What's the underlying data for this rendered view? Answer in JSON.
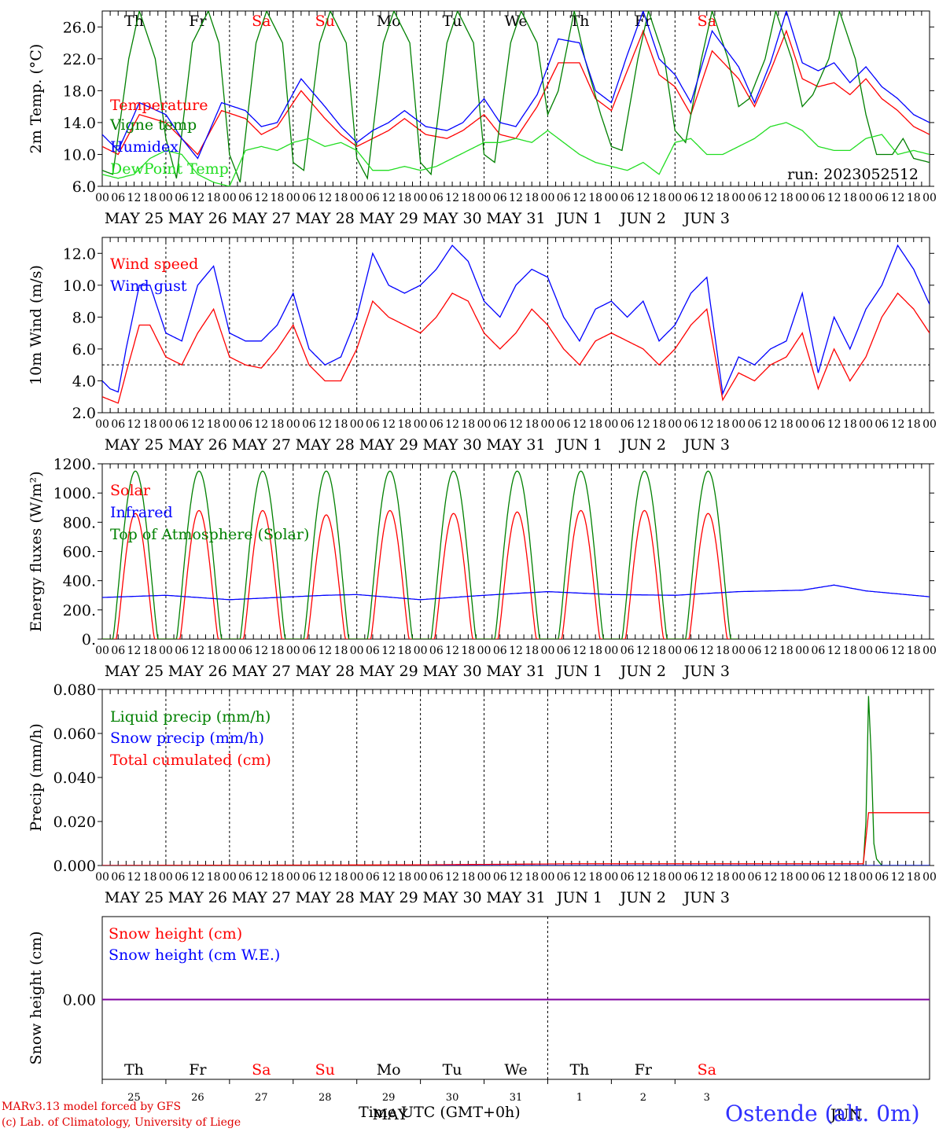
{
  "run_label": "run: 2023052512",
  "footer": {
    "credit_line1": "MARv3.13 model forced by GFS",
    "credit_line2": "(c) Lab. of Climatology, University of Liege",
    "axis_title": "Time UTC (GMT+0h)",
    "station": "Ostende (alt. 0m)",
    "month_label": "MAY",
    "month_label2": "JUN"
  },
  "days": [
    {
      "weekday": "Th",
      "date_label": "MAY 25",
      "daynum": "25",
      "weekend": false
    },
    {
      "weekday": "Fr",
      "date_label": "MAY 26",
      "daynum": "26",
      "weekend": false
    },
    {
      "weekday": "Sa",
      "date_label": "MAY 27",
      "daynum": "27",
      "weekend": true
    },
    {
      "weekday": "Su",
      "date_label": "MAY 28",
      "daynum": "28",
      "weekend": true
    },
    {
      "weekday": "Mo",
      "date_label": "MAY 29",
      "daynum": "29",
      "weekend": false
    },
    {
      "weekday": "Tu",
      "date_label": "MAY 30",
      "daynum": "30",
      "weekend": false
    },
    {
      "weekday": "We",
      "date_label": "MAY 31",
      "daynum": "31",
      "weekend": false
    },
    {
      "weekday": "Th",
      "date_label": "JUN  1",
      "daynum": "1",
      "weekend": false
    },
    {
      "weekday": "Fr",
      "date_label": "JUN  2",
      "daynum": "2",
      "weekend": false
    },
    {
      "weekday": "Sa",
      "date_label": "JUN  3",
      "daynum": "3",
      "weekend": true
    }
  ],
  "hour_ticks": [
    "00",
    "06",
    "12",
    "18"
  ],
  "colors": {
    "red": "#ff0000",
    "green": "#008000",
    "blue": "#0000ff",
    "lightgreen": "#22dd22",
    "weekend": "#ff0000",
    "purple": "#8000a0"
  },
  "chart_data": [
    {
      "type": "line",
      "ylabel": "2m Temp. (°C)",
      "ylim": [
        6,
        28
      ],
      "yticks": [
        "6.0",
        "10.0",
        "14.0",
        "18.0",
        "22.0",
        "26.0"
      ],
      "x_unit": "hours since 2023-05-25 00 UTC",
      "series": [
        {
          "name": "Temperature",
          "color": "red",
          "x": [
            0,
            6,
            14,
            24,
            30,
            36,
            45,
            54,
            60,
            66,
            75,
            84,
            90,
            96,
            102,
            108,
            114,
            122,
            130,
            136,
            144,
            150,
            156,
            164,
            172,
            180,
            186,
            192,
            198,
            204,
            210,
            216,
            222,
            230,
            240,
            246,
            252,
            258,
            264,
            270,
            276,
            282,
            288,
            294,
            300,
            306,
            312
          ],
          "y": [
            11.0,
            10.0,
            15.0,
            14.0,
            12.0,
            10.0,
            15.5,
            14.5,
            12.5,
            13.5,
            18.0,
            14.5,
            12.5,
            11.0,
            12.0,
            13.0,
            14.5,
            12.5,
            12.0,
            13.0,
            15.0,
            12.5,
            12.0,
            16.0,
            21.5,
            21.5,
            17.0,
            15.5,
            20.5,
            25.5,
            20.0,
            18.5,
            15.0,
            23.0,
            19.5,
            16.0,
            20.5,
            25.5,
            19.5,
            18.5,
            19.0,
            17.5,
            19.5,
            17.0,
            15.5,
            13.5,
            12.5
          ]
        },
        {
          "name": "Vigne temp",
          "color": "green",
          "x": [
            0,
            4,
            10,
            14,
            20,
            24,
            28,
            34,
            40,
            44,
            48,
            52,
            58,
            62,
            68,
            72,
            76,
            82,
            86,
            92,
            96,
            100,
            106,
            110,
            116,
            120,
            124,
            130,
            134,
            140,
            144,
            148,
            154,
            158,
            164,
            168,
            172,
            178,
            182,
            188,
            192,
            196,
            202,
            206,
            212,
            216,
            220,
            226,
            230,
            236,
            240,
            244,
            250,
            254,
            260,
            264,
            268,
            274,
            278,
            284,
            288,
            292,
            298,
            302,
            306,
            312
          ],
          "y": [
            8.0,
            7.5,
            22.0,
            28.0,
            22.0,
            12.0,
            7.0,
            24.0,
            28.0,
            24.0,
            10.0,
            6.5,
            24.0,
            28.0,
            24.0,
            9.0,
            8.0,
            24.0,
            28.0,
            24.0,
            9.5,
            7.0,
            24.0,
            28.0,
            24.0,
            9.0,
            7.5,
            24.0,
            28.0,
            24.0,
            10.0,
            9.0,
            24.0,
            28.0,
            24.0,
            15.0,
            18.0,
            28.0,
            22.0,
            15.0,
            11.0,
            10.5,
            22.0,
            28.0,
            22.0,
            13.0,
            11.5,
            22.0,
            28.0,
            22.0,
            16.0,
            17.0,
            22.0,
            28.0,
            22.0,
            16.0,
            17.5,
            22.0,
            28.0,
            22.0,
            15.0,
            10.0,
            10.0,
            12.0,
            9.5,
            9.0
          ]
        },
        {
          "name": "Humidex",
          "color": "blue",
          "x": [
            0,
            6,
            14,
            24,
            30,
            36,
            45,
            54,
            60,
            66,
            75,
            84,
            90,
            96,
            102,
            108,
            114,
            122,
            130,
            136,
            144,
            150,
            156,
            164,
            172,
            180,
            186,
            192,
            198,
            204,
            210,
            216,
            222,
            230,
            240,
            246,
            252,
            258,
            264,
            270,
            276,
            282,
            288,
            294,
            300,
            306,
            312
          ],
          "y": [
            12.5,
            10.5,
            16.5,
            15.0,
            12.0,
            9.5,
            16.5,
            15.5,
            13.5,
            14.0,
            19.5,
            16.0,
            13.5,
            11.5,
            13.0,
            14.0,
            15.5,
            13.5,
            13.0,
            14.0,
            17.0,
            14.0,
            13.5,
            17.5,
            24.5,
            24.0,
            18.0,
            16.5,
            22.5,
            28.0,
            22.0,
            20.0,
            16.5,
            25.5,
            21.0,
            16.5,
            21.5,
            28.0,
            21.5,
            20.5,
            21.5,
            19.0,
            21.0,
            18.5,
            17.0,
            15.0,
            14.0
          ]
        },
        {
          "name": "DewPoint Temp",
          "color": "lightgreen",
          "x": [
            0,
            6,
            12,
            18,
            24,
            30,
            36,
            42,
            48,
            54,
            60,
            66,
            72,
            78,
            84,
            90,
            96,
            102,
            108,
            114,
            120,
            126,
            132,
            138,
            144,
            150,
            156,
            162,
            168,
            174,
            180,
            186,
            192,
            198,
            204,
            210,
            216,
            222,
            228,
            234,
            240,
            246,
            252,
            258,
            264,
            270,
            276,
            282,
            288,
            294,
            300,
            306,
            312
          ],
          "y": [
            7.5,
            7.0,
            7.5,
            9.5,
            10.5,
            10.0,
            7.5,
            6.5,
            6.0,
            10.5,
            11.0,
            10.5,
            11.5,
            12.0,
            11.0,
            11.5,
            10.5,
            8.0,
            8.0,
            8.5,
            8.0,
            8.5,
            9.5,
            10.5,
            11.5,
            11.5,
            12.0,
            11.5,
            13.0,
            11.5,
            10.0,
            9.0,
            8.5,
            8.0,
            9.0,
            7.5,
            11.5,
            12.0,
            10.0,
            10.0,
            11.0,
            12.0,
            13.5,
            14.0,
            13.0,
            11.0,
            10.5,
            10.5,
            12.0,
            12.5,
            10.0,
            10.5,
            10.0
          ]
        }
      ]
    },
    {
      "type": "line",
      "ylabel": "10m Wind (m/s)",
      "ylim": [
        2,
        13
      ],
      "yticks": [
        "2.0",
        "4.0",
        "6.0",
        "8.0",
        "10.0",
        "12.0"
      ],
      "reference_line": 5,
      "series": [
        {
          "name": "Wind speed",
          "color": "red",
          "x": [
            0,
            3,
            6,
            9,
            14,
            18,
            24,
            30,
            36,
            42,
            48,
            54,
            60,
            66,
            72,
            78,
            84,
            90,
            96,
            102,
            108,
            114,
            120,
            126,
            132,
            138,
            144,
            150,
            156,
            162,
            168,
            174,
            180,
            186,
            192,
            198,
            204,
            210,
            216,
            222,
            228,
            234,
            240,
            246,
            252,
            258,
            264,
            270,
            276,
            282,
            288,
            294,
            300,
            306,
            312
          ],
          "y": [
            3.0,
            2.8,
            2.6,
            4.5,
            7.5,
            7.5,
            5.5,
            5.0,
            7.0,
            8.5,
            5.5,
            5.0,
            4.8,
            6.0,
            7.5,
            5.0,
            4.0,
            4.0,
            6.0,
            9.0,
            8.0,
            7.5,
            7.0,
            8.0,
            9.5,
            9.0,
            7.0,
            6.0,
            7.0,
            8.5,
            7.5,
            6.0,
            5.0,
            6.5,
            7.0,
            6.5,
            6.0,
            5.0,
            6.0,
            7.5,
            8.5,
            2.8,
            4.5,
            4.0,
            5.0,
            5.5,
            7.0,
            3.5,
            6.0,
            4.0,
            5.5,
            8.0,
            9.5,
            8.5,
            7.0
          ]
        },
        {
          "name": "Wind gust",
          "color": "blue",
          "x": [
            0,
            3,
            6,
            9,
            14,
            18,
            24,
            30,
            36,
            42,
            48,
            54,
            60,
            66,
            72,
            78,
            84,
            90,
            96,
            102,
            108,
            114,
            120,
            126,
            132,
            138,
            144,
            150,
            156,
            162,
            168,
            174,
            180,
            186,
            192,
            198,
            204,
            210,
            216,
            222,
            228,
            234,
            240,
            246,
            252,
            258,
            264,
            270,
            276,
            282,
            288,
            294,
            300,
            306,
            312
          ],
          "y": [
            4.0,
            3.5,
            3.3,
            6.0,
            10.0,
            10.0,
            7.0,
            6.5,
            10.0,
            11.2,
            7.0,
            6.5,
            6.5,
            7.5,
            9.5,
            6.0,
            5.0,
            5.5,
            8.0,
            12.0,
            10.0,
            9.5,
            10.0,
            11.0,
            12.5,
            11.5,
            9.0,
            8.0,
            10.0,
            11.0,
            10.5,
            8.0,
            6.5,
            8.5,
            9.0,
            8.0,
            9.0,
            6.5,
            7.5,
            9.5,
            10.5,
            3.2,
            5.5,
            5.0,
            6.0,
            6.5,
            9.5,
            4.5,
            8.0,
            6.0,
            8.5,
            10.0,
            12.5,
            11.0,
            8.8
          ]
        }
      ]
    },
    {
      "type": "line",
      "ylabel": "Energy fluxes (W/m²)",
      "ylim": [
        0,
        1200
      ],
      "yticks": [
        "0.",
        "200.",
        "400.",
        "600.",
        "800.",
        "1000.",
        "1200."
      ],
      "series": [
        {
          "name": "Solar",
          "color": "red",
          "peaks": [
            860,
            880,
            880,
            850,
            880,
            860,
            870,
            880,
            880,
            860
          ]
        },
        {
          "name": "Infrared",
          "color": "blue",
          "x": [
            0,
            24,
            48,
            72,
            84,
            96,
            120,
            144,
            168,
            192,
            216,
            240,
            264,
            276,
            288,
            312
          ],
          "y": [
            285,
            300,
            270,
            290,
            300,
            305,
            270,
            300,
            325,
            305,
            300,
            325,
            335,
            370,
            330,
            290
          ]
        },
        {
          "name": "Top of Atmosphere (Solar)",
          "color": "green",
          "peaks": [
            1150,
            1150,
            1150,
            1150,
            1150,
            1150,
            1150,
            1150,
            1150,
            1150
          ]
        }
      ]
    },
    {
      "type": "line",
      "ylabel": "Precip (mm/h)",
      "ylim": [
        0,
        0.08
      ],
      "yticks": [
        "0.000",
        "0.020",
        "0.040",
        "0.060",
        "0.080"
      ],
      "series": [
        {
          "name": "Liquid precip (mm/h)",
          "color": "green",
          "x": [
            0,
            287,
            288,
            289,
            290,
            291,
            292,
            294,
            312
          ],
          "y": [
            0,
            0,
            0.02,
            0.077,
            0.05,
            0.01,
            0.003,
            0,
            0
          ]
        },
        {
          "name": "Snow precip (mm/h)",
          "color": "blue",
          "x": [
            0,
            312
          ],
          "y": [
            0,
            0
          ]
        },
        {
          "name": "Total cumulated (cm)",
          "color": "red",
          "x": [
            0,
            120,
            180,
            287,
            289,
            312
          ],
          "y": [
            0,
            0.0003,
            0.0008,
            0.0008,
            0.024,
            0.024
          ]
        }
      ]
    },
    {
      "type": "line",
      "ylabel": "Snow height (cm)",
      "yticks": [
        "0.00"
      ],
      "series": [
        {
          "name": "Snow height (cm)",
          "color": "red",
          "x": [
            0,
            312
          ],
          "y": [
            0,
            0
          ]
        },
        {
          "name": "Snow height (cm W.E.)",
          "color": "blue",
          "x": [
            0,
            312
          ],
          "y": [
            0,
            0
          ]
        }
      ]
    }
  ]
}
